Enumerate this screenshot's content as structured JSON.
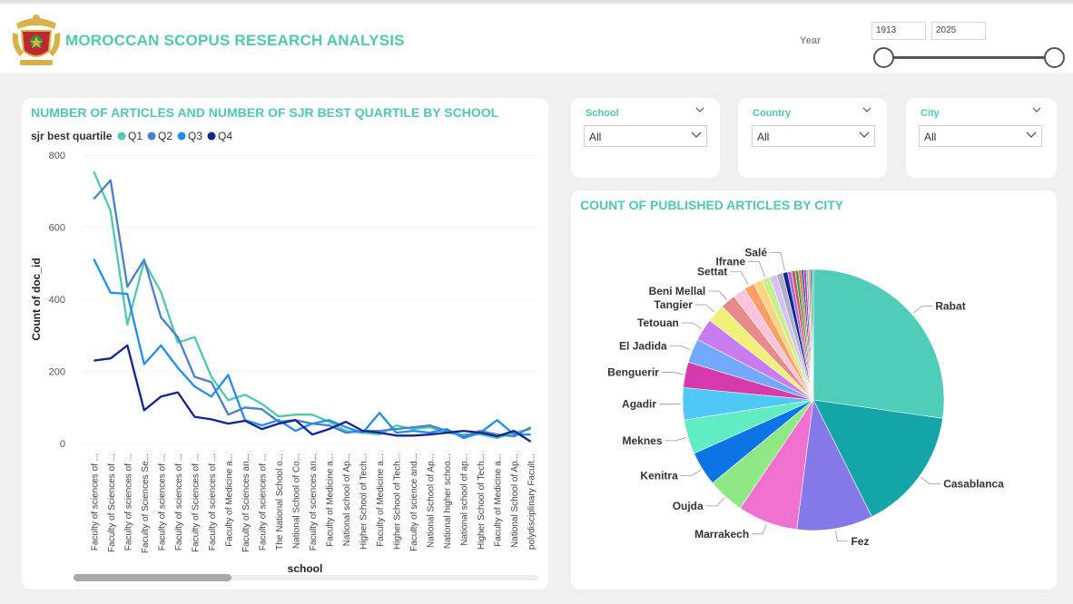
{
  "header": {
    "title": "MOROCCAN SCOPUS RESEARCH ANALYSIS",
    "logo_icon": "coat-of-arms-icon",
    "year_label": "Year",
    "year_from": "1913",
    "year_to": "2025"
  },
  "filters": [
    {
      "label": "School",
      "value": "All"
    },
    {
      "label": "Country",
      "value": "All"
    },
    {
      "label": "City",
      "value": "All"
    }
  ],
  "line_chart": {
    "title": "NUMBER OF ARTICLES AND NUMBER OF SJR BEST QUARTILE BY SCHOOL",
    "legend_title": "sjr best quartile",
    "ylabel": "Count of doc_id",
    "xlabel": "school"
  },
  "pie_chart": {
    "title": "COUNT OF PUBLISHED ARTICLES BY CITY"
  },
  "colors": {
    "accent": "#4fc9b0",
    "Q1": "#4fc9b0",
    "Q2": "#4a7fc9",
    "Q3": "#1f8ef0",
    "Q4": "#14238f"
  },
  "chart_data": [
    {
      "type": "line",
      "title": "NUMBER OF ARTICLES AND NUMBER OF SJR BEST QUARTILE BY SCHOOL",
      "xlabel": "school",
      "ylabel": "Count of doc_id",
      "ylim": [
        0,
        800
      ],
      "yticks": [
        0,
        200,
        400,
        600,
        800
      ],
      "legend_title": "sjr best quartile",
      "legend_position": "top-left",
      "grid": true,
      "categories": [
        "Faculty of sciences of ...",
        "Faculty of Sciences of ...",
        "Faculty of sciences of ...",
        "Faculty of Sciences Se...",
        "Faculty of sciences of ...",
        "Faculty of sciences of ...",
        "Faculty of Sciences of ...",
        "Faculty of sciences of ...",
        "Faculty of Medicine a...",
        "Faculty of Sciences an...",
        "Faculty of sciences of ...",
        "The National School o...",
        "National School of Co...",
        "Faculty of sciences an...",
        "Faculty of Medicine a...",
        "National school of Ap...",
        "Higher School of Tech...",
        "Faculty of Medicine a...",
        "Higher School of Tech...",
        "Faculty of science and...",
        "National School of Ap...",
        "National higher schoo...",
        "National school of ap...",
        "Higher School of Tech...",
        "Faculty of Medicine a...",
        "National School of Ap...",
        "polydisciplinary Facult..."
      ],
      "series": [
        {
          "name": "Q1",
          "values": [
            755,
            645,
            330,
            505,
            420,
            280,
            295,
            185,
            120,
            135,
            110,
            75,
            80,
            80,
            60,
            35,
            30,
            25,
            50,
            40,
            45,
            30,
            25,
            25,
            15,
            30,
            40
          ]
        },
        {
          "name": "Q2",
          "values": [
            678,
            730,
            435,
            510,
            350,
            295,
            185,
            170,
            80,
            100,
            95,
            60,
            65,
            55,
            50,
            30,
            35,
            35,
            40,
            45,
            50,
            35,
            20,
            35,
            25,
            20,
            45
          ]
        },
        {
          "name": "Q3",
          "values": [
            512,
            418,
            415,
            220,
            272,
            210,
            158,
            130,
            190,
            65,
            50,
            65,
            35,
            55,
            65,
            45,
            30,
            85,
            30,
            35,
            30,
            40,
            15,
            30,
            65,
            25,
            25
          ]
        },
        {
          "name": "Q4",
          "values": [
            230,
            236,
            272,
            92,
            130,
            142,
            74,
            67,
            55,
            63,
            40,
            55,
            65,
            25,
            40,
            60,
            35,
            30,
            22,
            22,
            25,
            30,
            35,
            30,
            20,
            35,
            5
          ]
        }
      ]
    },
    {
      "type": "pie",
      "title": "COUNT OF PUBLISHED ARTICLES BY CITY",
      "slices": [
        {
          "label": "Rabat",
          "value": 27.5,
          "color": "#4fcdb9"
        },
        {
          "label": "Casablanca",
          "value": 15.5,
          "color": "#13a5a8"
        },
        {
          "label": "Fez",
          "value": 9.5,
          "color": "#8579ea"
        },
        {
          "label": "Marrakech",
          "value": 7.5,
          "color": "#ef72d0"
        },
        {
          "label": "Oujda",
          "value": 4.6,
          "color": "#8ee884"
        },
        {
          "label": "Kenitra",
          "value": 4.3,
          "color": "#0b75e6"
        },
        {
          "label": "Meknes",
          "value": 4.3,
          "color": "#60edc3"
        },
        {
          "label": "Agadir",
          "value": 4.0,
          "color": "#4ec8f5"
        },
        {
          "label": "Benguerir",
          "value": 3.2,
          "color": "#d63aac"
        },
        {
          "label": "El Jadida",
          "value": 3.0,
          "color": "#72a9ff"
        },
        {
          "label": "Tetouan",
          "value": 2.8,
          "color": "#c97cf0"
        },
        {
          "label": "Tangier",
          "value": 2.3,
          "color": "#f0f07a"
        },
        {
          "label": "Beni Mellal",
          "value": 1.9,
          "color": "#e88a8a"
        },
        {
          "label": "",
          "value": 1.6,
          "color": "#ffc4dc"
        },
        {
          "label": "Settat",
          "value": 1.3,
          "color": "#ff9f66"
        },
        {
          "label": "",
          "value": 1.1,
          "color": "#ffd580"
        },
        {
          "label": "Ifrane",
          "value": 1.0,
          "color": "#c6f08a"
        },
        {
          "label": "",
          "value": 0.9,
          "color": "#d8c0f5"
        },
        {
          "label": "",
          "value": 0.8,
          "color": "#b0b0c8"
        },
        {
          "label": "Salé",
          "value": 0.6,
          "color": "#14238f"
        },
        {
          "label": "",
          "value": 0.5,
          "color": "#a070e0"
        },
        {
          "label": "",
          "value": 0.45,
          "color": "#e05050"
        },
        {
          "label": "",
          "value": 0.4,
          "color": "#30a060"
        },
        {
          "label": "",
          "value": 0.35,
          "color": "#f07030"
        },
        {
          "label": "",
          "value": 0.3,
          "color": "#3050c0"
        },
        {
          "label": "",
          "value": 0.3,
          "color": "#c03090"
        },
        {
          "label": "",
          "value": 0.25,
          "color": "#60c0e0"
        },
        {
          "label": "",
          "value": 0.25,
          "color": "#e0b030"
        },
        {
          "label": "",
          "value": 0.2,
          "color": "#7040a0"
        },
        {
          "label": "",
          "value": 0.2,
          "color": "#20b0a0"
        }
      ]
    }
  ]
}
